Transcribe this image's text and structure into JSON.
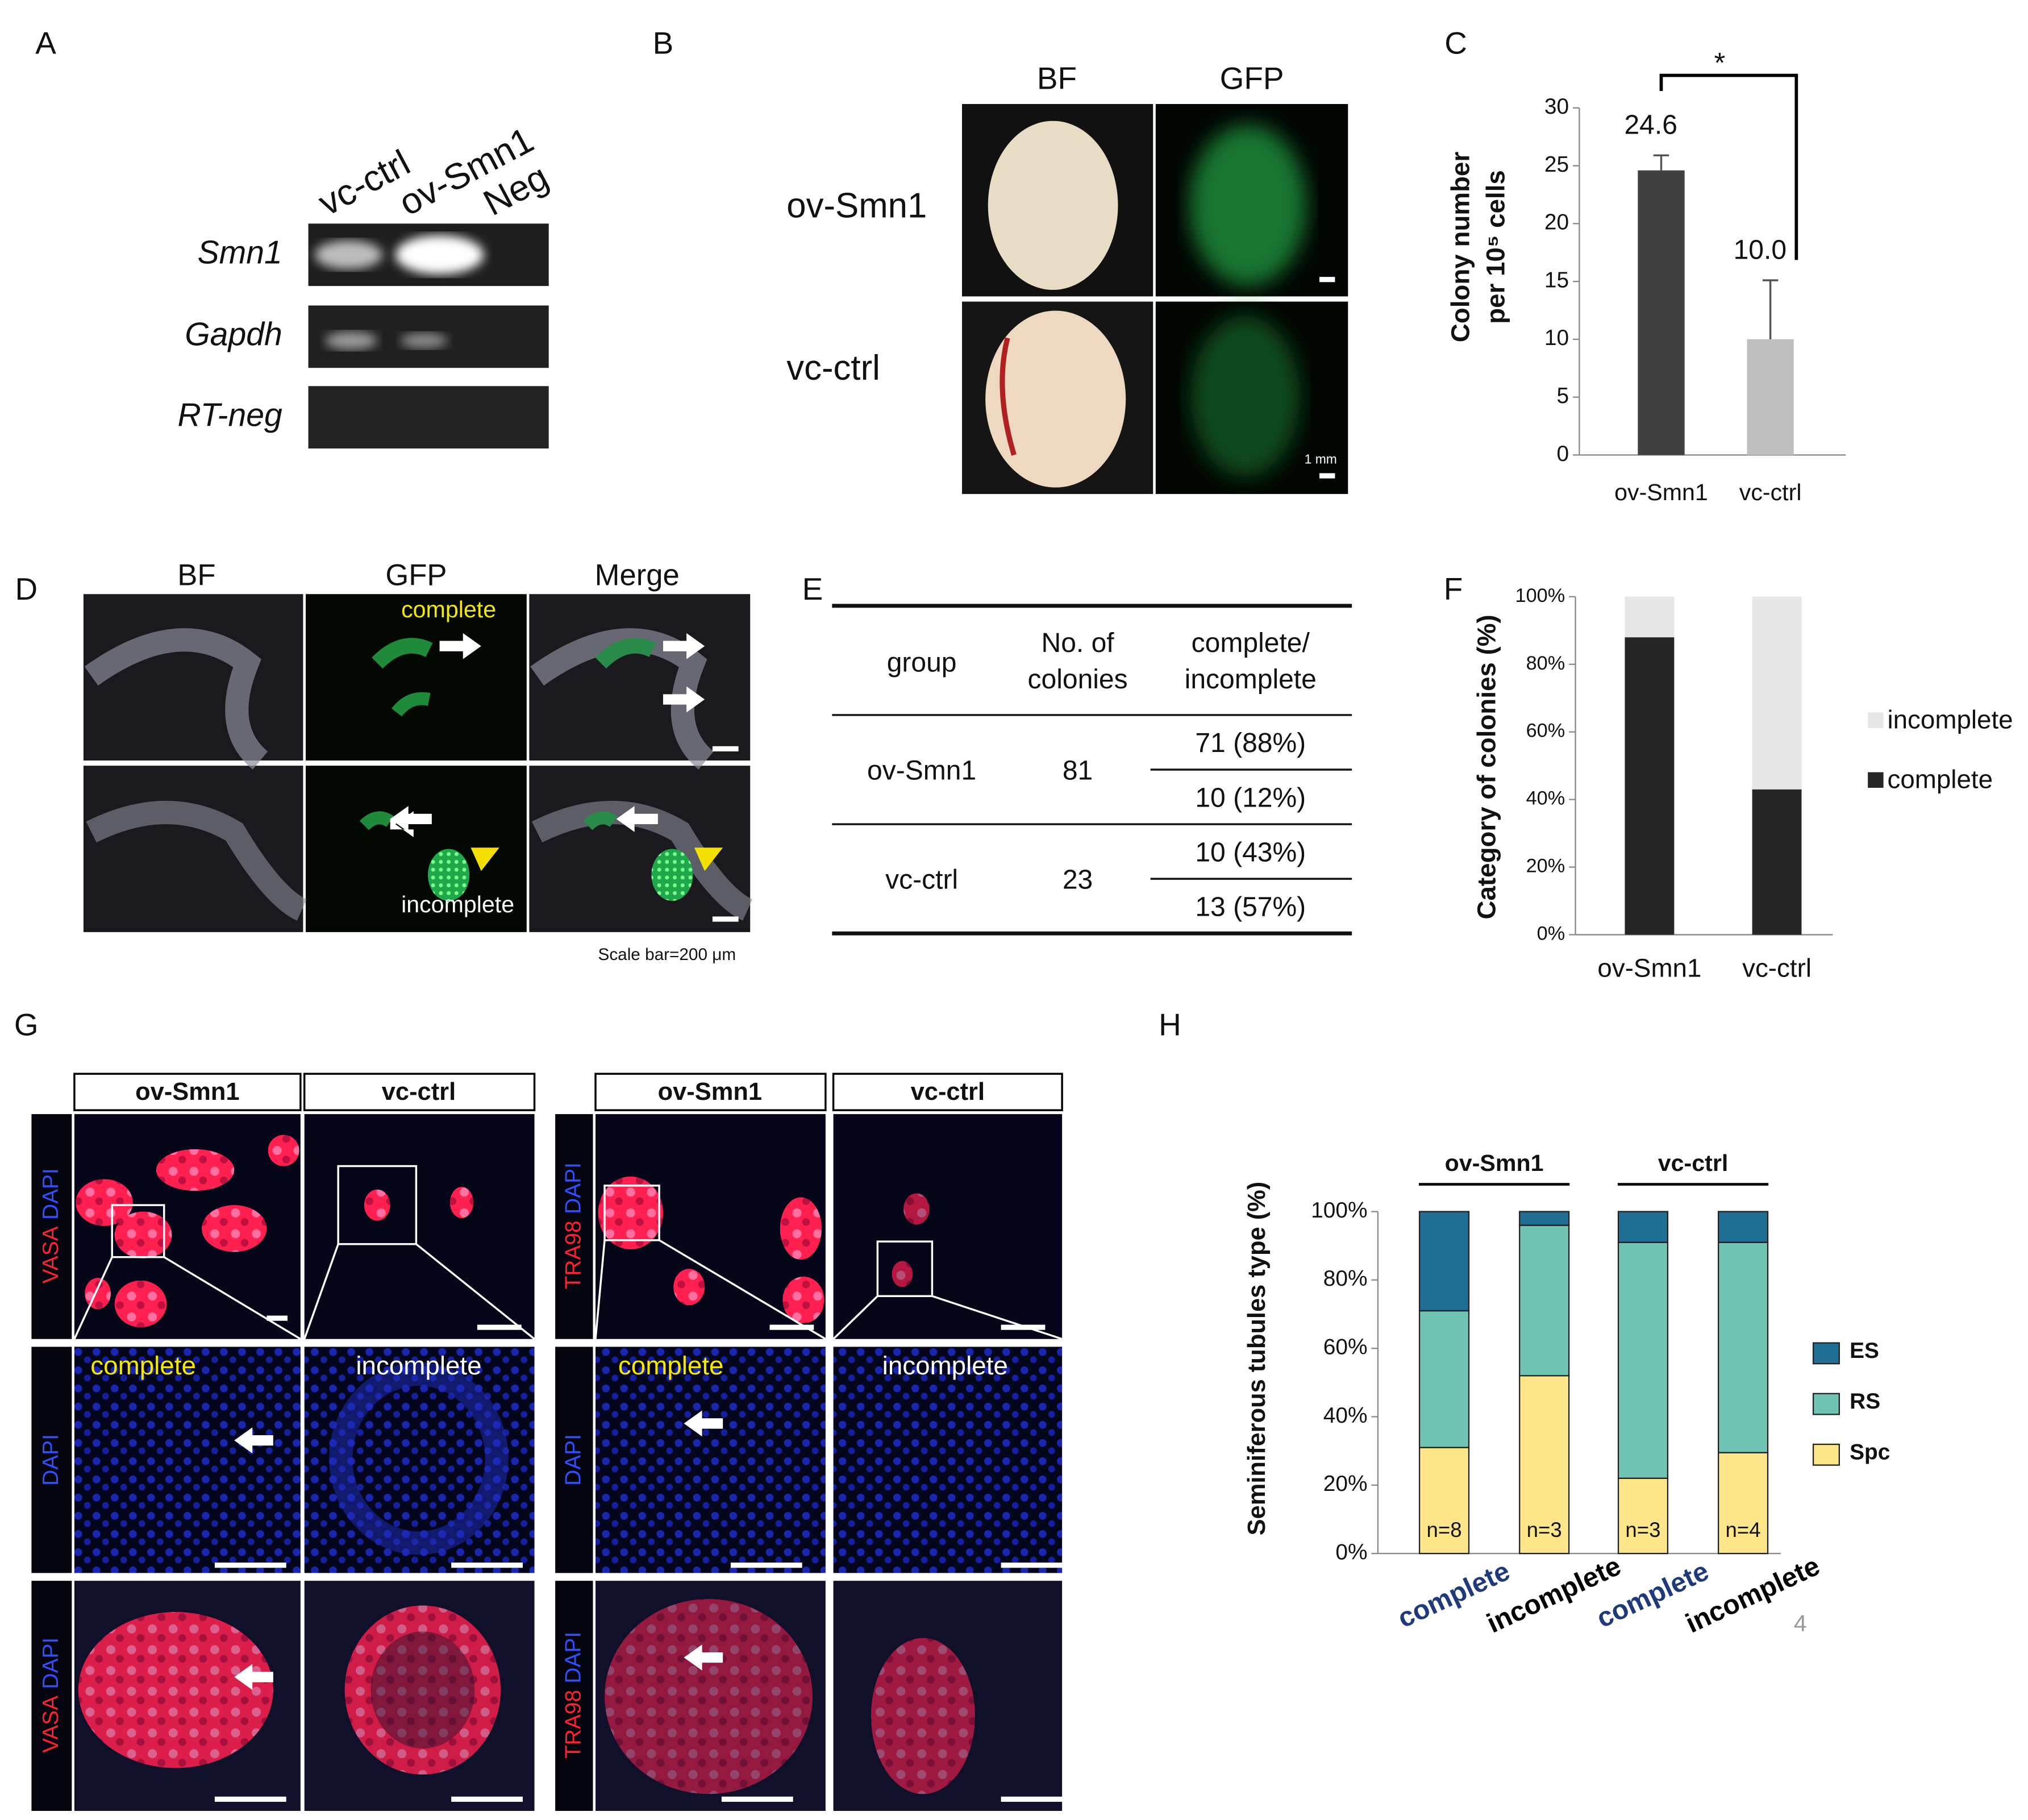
{
  "panel_letters": [
    "A",
    "B",
    "C",
    "D",
    "E",
    "F",
    "G",
    "H"
  ],
  "panel_a": {
    "lanes": [
      "vc-ctrl",
      "ov-Smn1",
      "Neg"
    ],
    "genes": [
      "Smn1",
      "Gapdh",
      "RT-neg"
    ]
  },
  "panel_b": {
    "columns": [
      "BF",
      "GFP"
    ],
    "rows": [
      "ov-Smn1",
      "vc-ctrl"
    ],
    "scale_bar": "1 mm"
  },
  "chart_data": [
    {
      "type": "bar",
      "y_label": [
        "Colony number",
        "per 10⁵ cells"
      ],
      "categories": [
        "ov-Smn1",
        "vc-ctrl"
      ],
      "values": [
        24.6,
        10.0
      ],
      "value_labels": [
        "24.6",
        "10.0"
      ],
      "error": [
        1.3,
        5.1
      ],
      "colors": [
        "#404040",
        "#bfbfbf"
      ],
      "ylim": [
        0,
        30
      ],
      "yticks": [
        0,
        5,
        10,
        15,
        20,
        25,
        30
      ],
      "annotation": "*"
    },
    {
      "type": "stacked_bar",
      "y_label": "Category of colonies (%)",
      "categories": [
        "ov-Smn1",
        "vc-ctrl"
      ],
      "series": [
        {
          "name": "complete",
          "color": "#262626",
          "values": [
            88,
            43
          ]
        },
        {
          "name": "incomplete",
          "color": "#e6e6e6",
          "values": [
            12,
            57
          ]
        }
      ],
      "ylim": [
        0,
        100
      ],
      "yticks": [
        {
          "value": 0,
          "label": "0%"
        },
        {
          "value": 20,
          "label": "20%"
        },
        {
          "value": 40,
          "label": "40%"
        },
        {
          "value": 60,
          "label": "60%"
        },
        {
          "value": 80,
          "label": "80%"
        },
        {
          "value": 100,
          "label": "100%"
        }
      ],
      "legend": "right"
    },
    {
      "type": "stacked_bar",
      "y_label": "Seminiferous tubules type (%)",
      "groups": [
        "ov-Smn1",
        "vc-ctrl"
      ],
      "categories": [
        "complete",
        "incomplete",
        "complete",
        "incomplete"
      ],
      "category_colors": [
        "#1f3a7a",
        "#000000",
        "#1f3a7a",
        "#000000"
      ],
      "series": [
        {
          "name": "Spc",
          "color": "#fde58a",
          "values": [
            31,
            52,
            22,
            29.5
          ]
        },
        {
          "name": "RS",
          "color": "#70c4b4",
          "values": [
            40,
            44,
            69,
            61.5
          ]
        },
        {
          "name": "ES",
          "color": "#1f6e94",
          "values": [
            29,
            4,
            9,
            9
          ]
        }
      ],
      "annotations": [
        "n=8",
        "n=3",
        "n=3",
        "n=4"
      ],
      "ylim": [
        0,
        100
      ],
      "yticks": [
        {
          "value": 0,
          "label": "0%"
        },
        {
          "value": 20,
          "label": "20%"
        },
        {
          "value": 40,
          "label": "40%"
        },
        {
          "value": 60,
          "label": "60%"
        },
        {
          "value": 80,
          "label": "80%"
        },
        {
          "value": 100,
          "label": "100%"
        }
      ],
      "legend": "right"
    }
  ],
  "panel_d": {
    "columns": [
      "BF",
      "GFP",
      "Merge"
    ],
    "labels": [
      "complete",
      "incomplete"
    ],
    "scale_note": "Scale bar=200 μm"
  },
  "table": {
    "header": [
      [
        "group"
      ],
      [
        "No. of",
        "colonies"
      ],
      [
        "complete/",
        "incomplete"
      ]
    ],
    "rows": [
      {
        "group": "ov-Smn1",
        "colonies": "81",
        "split": [
          "71 (88%)",
          "10 (12%)"
        ]
      },
      {
        "group": "vc-ctrl",
        "colonies": "23",
        "split": [
          "10 (43%)",
          "13 (57%)"
        ]
      }
    ]
  },
  "panel_g": {
    "headers": [
      "ov-Smn1",
      "vc-ctrl"
    ],
    "stains": [
      "VASA",
      "DAPI",
      "TRA98"
    ],
    "labels": [
      "complete",
      "incomplete"
    ]
  },
  "page_number": "4"
}
